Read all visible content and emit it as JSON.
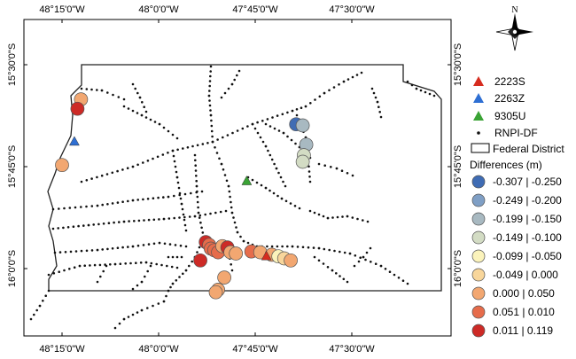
{
  "map": {
    "lon_labels": [
      "48°15'0\"W",
      "48°0'0\"W",
      "47°45'0\"W",
      "47°30'0\"W"
    ],
    "lat_labels": [
      "15°30'0\"S",
      "15°45'0\"S",
      "16°0'0\"S"
    ],
    "north_label": "N",
    "colors": {
      "network": "#111111",
      "boundary": "#222222"
    }
  },
  "legend": {
    "symbols": [
      {
        "label": "2223S",
        "shape": "triangle",
        "color": "#d62c1f"
      },
      {
        "label": "2263Z",
        "shape": "triangle",
        "color": "#2e6fd3"
      },
      {
        "label": "9305U",
        "shape": "triangle",
        "color": "#3aa335"
      },
      {
        "label": "RNPI-DF",
        "shape": "dot",
        "color": "#111111"
      },
      {
        "label": "Federal District",
        "shape": "box",
        "color": "#ffffff"
      }
    ],
    "differences_title": "Differences (m)",
    "classes": [
      {
        "label": "-0.307 | -0.250",
        "color": "#3f6cb4"
      },
      {
        "label": "-0.249 | -0.200",
        "color": "#7f9fc5"
      },
      {
        "label": "-0.199 | -0.150",
        "color": "#a8b9c1"
      },
      {
        "label": "-0.149 | -0.100",
        "color": "#d3dcc4"
      },
      {
        "label": "-0.099 | -0.050",
        "color": "#fbf3bb"
      },
      {
        "label": "-0.049 | 0.000",
        "color": "#f8d69b"
      },
      {
        "label": "0.000 | 0.050",
        "color": "#f2a771"
      },
      {
        "label": "0.051 | 0.010",
        "color": "#e66c4b"
      },
      {
        "label": "0.011 | 0.119",
        "color": "#cd2a26"
      }
    ]
  },
  "stations": [
    {
      "name": "2223S",
      "lon": -47.721,
      "lat": -15.97
    },
    {
      "name": "2263Z",
      "lon": -48.218,
      "lat": -15.689
    },
    {
      "name": "9305U",
      "lon": -47.772,
      "lat": -15.786
    }
  ],
  "difference_points": [
    {
      "lon": -48.201,
      "lat": -15.585,
      "class": 6
    },
    {
      "lon": -48.21,
      "lat": -15.608,
      "class": 8
    },
    {
      "lon": -48.25,
      "lat": -15.746,
      "class": 6
    },
    {
      "lon": -47.644,
      "lat": -15.646,
      "class": 0
    },
    {
      "lon": -47.627,
      "lat": -15.649,
      "class": 2
    },
    {
      "lon": -47.618,
      "lat": -15.696,
      "class": 2
    },
    {
      "lon": -47.624,
      "lat": -15.722,
      "class": 3
    },
    {
      "lon": -47.627,
      "lat": -15.738,
      "class": 3
    },
    {
      "lon": -47.878,
      "lat": -15.935,
      "class": 8
    },
    {
      "lon": -47.869,
      "lat": -15.942,
      "class": 7
    },
    {
      "lon": -47.865,
      "lat": -15.951,
      "class": 7
    },
    {
      "lon": -47.856,
      "lat": -15.955,
      "class": 7
    },
    {
      "lon": -47.846,
      "lat": -15.96,
      "class": 7
    },
    {
      "lon": -47.835,
      "lat": -15.945,
      "class": 6
    },
    {
      "lon": -47.822,
      "lat": -15.948,
      "class": 8
    },
    {
      "lon": -47.814,
      "lat": -15.96,
      "class": 6
    },
    {
      "lon": -47.8,
      "lat": -15.963,
      "class": 6
    },
    {
      "lon": -47.76,
      "lat": -15.958,
      "class": 7
    },
    {
      "lon": -47.737,
      "lat": -15.96,
      "class": 6
    },
    {
      "lon": -47.707,
      "lat": -15.966,
      "class": 6
    },
    {
      "lon": -47.69,
      "lat": -15.97,
      "class": 4
    },
    {
      "lon": -47.675,
      "lat": -15.975,
      "class": 5
    },
    {
      "lon": -47.658,
      "lat": -15.98,
      "class": 6
    },
    {
      "lon": -47.892,
      "lat": -15.98,
      "class": 8
    },
    {
      "lon": -47.83,
      "lat": -16.022,
      "class": 6
    },
    {
      "lon": -47.846,
      "lat": -16.052,
      "class": 6
    },
    {
      "lon": -47.852,
      "lat": -16.058,
      "class": 6
    }
  ]
}
